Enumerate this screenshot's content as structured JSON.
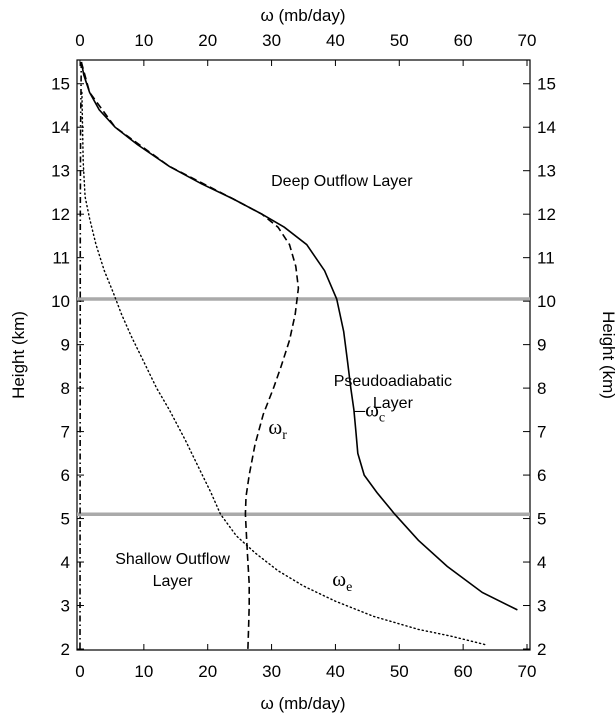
{
  "chart_data": {
    "type": "line",
    "xlabel_top": "ω (mb/day)",
    "xlabel_bottom": "ω (mb/day)",
    "ylabel_left": "Height (km)",
    "ylabel_right": "Height (km)",
    "xlim": [
      0,
      70
    ],
    "ylim": [
      2,
      15.5
    ],
    "xticks": [
      "0",
      "10",
      "20",
      "30",
      "40",
      "50",
      "60",
      "70"
    ],
    "yticks": [
      "2",
      "3",
      "4",
      "5",
      "6",
      "7",
      "8",
      "9",
      "10",
      "11",
      "12",
      "13",
      "14",
      "15"
    ],
    "grid": false,
    "reference_lines": [
      {
        "name": "upper-boundary",
        "y": 10.05,
        "color": "#aaaaaa"
      },
      {
        "name": "lower-boundary",
        "y": 5.1,
        "color": "#aaaaaa"
      }
    ],
    "region_labels": [
      {
        "lines": [
          "Deep Outflow Layer"
        ],
        "x": 41,
        "y": 12.65
      },
      {
        "lines": [
          "Pseudoadiabatic",
          "Layer"
        ],
        "x": 49,
        "y": 8.05
      },
      {
        "lines": [
          "Shallow Outflow",
          "Layer"
        ],
        "x": 14.5,
        "y": 3.95
      }
    ],
    "series": [
      {
        "name": "-ωc",
        "style": "solid",
        "points": [
          [
            0.2,
            15.5
          ],
          [
            0.6,
            15.2
          ],
          [
            1.5,
            14.8
          ],
          [
            3,
            14.4
          ],
          [
            5.5,
            14
          ],
          [
            9,
            13.6
          ],
          [
            14,
            13.1
          ],
          [
            19,
            12.7
          ],
          [
            24,
            12.35
          ],
          [
            28.5,
            12.0
          ],
          [
            32,
            11.7
          ],
          [
            35.5,
            11.3
          ],
          [
            38.3,
            10.7
          ],
          [
            40.2,
            10.05
          ],
          [
            41.3,
            9.3
          ],
          [
            41.9,
            8.6
          ],
          [
            42.4,
            8
          ],
          [
            42.9,
            7.5
          ],
          [
            43.2,
            7.0
          ],
          [
            43.5,
            6.5
          ],
          [
            44.5,
            6.0
          ],
          [
            46.5,
            5.6
          ],
          [
            49.3,
            5.1
          ],
          [
            53,
            4.5
          ],
          [
            57.5,
            3.9
          ],
          [
            63,
            3.3
          ],
          [
            68.5,
            2.9
          ]
        ]
      },
      {
        "name": "ωr",
        "style": "dashed",
        "points": [
          [
            0.2,
            15.5
          ],
          [
            1.5,
            14.8
          ],
          [
            5.5,
            14
          ],
          [
            14,
            13.1
          ],
          [
            24,
            12.35
          ],
          [
            28.5,
            12.0
          ],
          [
            31,
            11.7
          ],
          [
            32.8,
            11.3
          ],
          [
            33.8,
            10.8
          ],
          [
            34.2,
            10.3
          ],
          [
            33.7,
            9.7
          ],
          [
            32.8,
            9.1
          ],
          [
            31.5,
            8.5
          ],
          [
            30.3,
            8
          ],
          [
            28.7,
            7.4
          ],
          [
            27.4,
            6.7
          ],
          [
            26.5,
            6.0
          ],
          [
            26,
            5.5
          ],
          [
            25.9,
            5.1
          ],
          [
            26.1,
            4.5
          ],
          [
            26.3,
            4
          ],
          [
            26.5,
            3.5
          ],
          [
            26.5,
            3
          ],
          [
            26.4,
            2.5
          ],
          [
            26.3,
            2.0
          ]
        ]
      },
      {
        "name": "ωe",
        "style": "dotted",
        "points": [
          [
            0.3,
            14.8
          ],
          [
            0.5,
            13.2
          ],
          [
            0.8,
            12.4
          ],
          [
            1.5,
            11.9
          ],
          [
            2.5,
            11.3
          ],
          [
            3.8,
            10.7
          ],
          [
            5.2,
            10.2
          ],
          [
            6.5,
            9.7
          ],
          [
            8,
            9.2
          ],
          [
            10,
            8.6
          ],
          [
            12,
            8.0
          ],
          [
            14,
            7.5
          ],
          [
            16.5,
            6.8
          ],
          [
            18.5,
            6.2
          ],
          [
            20.5,
            5.6
          ],
          [
            22,
            5.1
          ],
          [
            24.5,
            4.6
          ],
          [
            27.5,
            4.2
          ],
          [
            31,
            3.8
          ],
          [
            35,
            3.45
          ],
          [
            40,
            3.1
          ],
          [
            46,
            2.75
          ],
          [
            53,
            2.45
          ],
          [
            58,
            2.3
          ],
          [
            63.5,
            2.1
          ]
        ]
      },
      {
        "name": "baseline",
        "style": "dashdot",
        "points": [
          [
            0.2,
            15.5
          ],
          [
            0.1,
            14
          ],
          [
            0.05,
            12
          ],
          [
            0,
            2
          ]
        ]
      }
    ],
    "series_labels": [
      {
        "series": "ωr",
        "main": "ω",
        "sub": "r",
        "x": 29.5,
        "y": 6.95
      },
      {
        "series": "-ωc",
        "main": "–ω",
        "sub": "c",
        "x": 43.0,
        "y": 7.35
      },
      {
        "series": "ωe",
        "main": "ω",
        "sub": "e",
        "x": 39.5,
        "y": 3.45
      }
    ]
  }
}
